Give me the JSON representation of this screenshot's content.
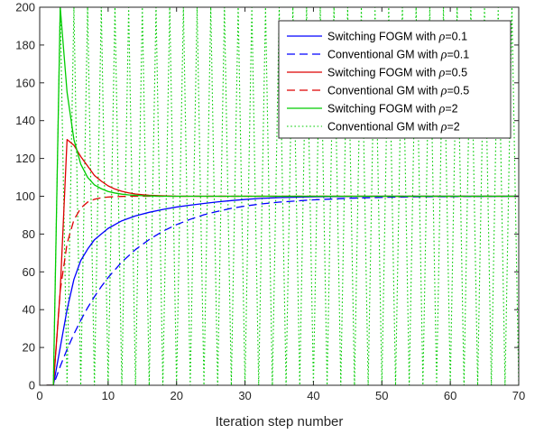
{
  "chart_data": {
    "type": "line",
    "title": "",
    "xlabel": "Iteration step number",
    "ylabel": "",
    "xlim": [
      0,
      70
    ],
    "ylim": [
      0,
      200
    ],
    "xticks": [
      0,
      10,
      20,
      30,
      40,
      50,
      60,
      70
    ],
    "yticks": [
      0,
      20,
      40,
      60,
      80,
      100,
      120,
      140,
      160,
      180,
      200
    ],
    "grid": false,
    "legend_position": "top-right",
    "series": [
      {
        "name": "Switching FOGM with ρ=0.1",
        "label_prefix": "Switching FOGM with ",
        "label_rho": "ρ",
        "label_suffix": "=0.1",
        "color": "#0000ff",
        "dash": "solid",
        "x": [
          1,
          2,
          3,
          4,
          5,
          6,
          7,
          8,
          9,
          10,
          12,
          14,
          16,
          18,
          20,
          22,
          24,
          26,
          28,
          30,
          32,
          35,
          40,
          45,
          50,
          55,
          60,
          65,
          70
        ],
        "y": [
          0,
          0,
          20,
          40,
          56,
          66,
          72,
          77,
          80,
          83,
          87,
          89.6,
          91.5,
          93,
          94.3,
          95.3,
          96.2,
          97,
          97.7,
          98.3,
          98.8,
          99.3,
          99.7,
          99.9,
          100,
          100,
          100,
          100,
          100
        ]
      },
      {
        "name": "Conventional GM with ρ=0.1",
        "label_prefix": "Conventional GM with ",
        "label_rho": "ρ",
        "label_suffix": "=0.1",
        "color": "#0000ff",
        "dash": "dash",
        "x": [
          1,
          2,
          3,
          4,
          5,
          6,
          7,
          8,
          9,
          10,
          12,
          14,
          16,
          18,
          20,
          22,
          24,
          26,
          28,
          30,
          32,
          35,
          40,
          45,
          50,
          55,
          60,
          65,
          70
        ],
        "y": [
          0,
          0,
          10,
          19,
          27.1,
          34.4,
          41,
          46.9,
          52.2,
          57,
          65.2,
          71.8,
          77.1,
          81.5,
          85,
          87.8,
          90.2,
          92,
          93.6,
          94.8,
          95.8,
          96.9,
          98.1,
          98.9,
          99.4,
          99.7,
          99.8,
          99.9,
          100
        ]
      },
      {
        "name": "Switching FOGM with ρ=0.5",
        "label_prefix": "Switching FOGM with ",
        "label_rho": "ρ",
        "label_suffix": "=0.5",
        "color": "#dd0000",
        "dash": "solid",
        "x": [
          1,
          2,
          3,
          4,
          5,
          6,
          7,
          8,
          9,
          10,
          11,
          12,
          13,
          14,
          15,
          16,
          18,
          20,
          25,
          30,
          40,
          50,
          60,
          70
        ],
        "y": [
          0,
          0,
          50,
          130,
          127,
          121,
          116,
          111,
          108,
          105.5,
          103.8,
          102.6,
          101.8,
          101.2,
          100.8,
          100.5,
          100.2,
          100,
          100,
          100,
          100,
          100,
          100,
          100
        ]
      },
      {
        "name": "Conventional GM with ρ=0.5",
        "label_prefix": "Conventional GM with ",
        "label_rho": "ρ",
        "label_suffix": "=0.5",
        "color": "#dd0000",
        "dash": "dash",
        "x": [
          1,
          2,
          3,
          4,
          5,
          6,
          7,
          8,
          9,
          10,
          11,
          12,
          13,
          14,
          15,
          16,
          18,
          20,
          25,
          30,
          40,
          50,
          60,
          70
        ],
        "y": [
          0,
          0,
          50,
          75,
          87.5,
          93.7,
          96.9,
          98.4,
          99.2,
          99.6,
          99.8,
          99.9,
          100,
          100,
          100,
          100,
          100,
          100,
          100,
          100,
          100,
          100,
          100,
          100
        ]
      },
      {
        "name": "Switching FOGM with ρ=2",
        "label_prefix": "Switching FOGM with ",
        "label_rho": "ρ",
        "label_suffix": "=2",
        "color": "#00cc00",
        "dash": "solid",
        "x": [
          1,
          2,
          3,
          4,
          5,
          6,
          7,
          8,
          9,
          10,
          11,
          12,
          13,
          14,
          15,
          16,
          17,
          18,
          20,
          25,
          30,
          40,
          50,
          60,
          70
        ],
        "y": [
          0,
          0,
          200,
          155,
          130,
          117,
          110,
          106,
          104,
          102.5,
          101.7,
          101.1,
          100.7,
          100.5,
          100.3,
          100.2,
          100.1,
          100,
          100,
          100,
          100,
          100,
          100,
          100,
          100
        ]
      },
      {
        "name": "Conventional GM with ρ=2",
        "label_prefix": "Conventional GM with ",
        "label_rho": "ρ",
        "label_suffix": "=2",
        "color": "#00cc00",
        "dash": "dot",
        "pattern": "oscillates between 0 and 200 at every iteration step starting from step 2",
        "x_start": 2,
        "x_end": 70,
        "low": 0,
        "high": 200
      }
    ]
  }
}
